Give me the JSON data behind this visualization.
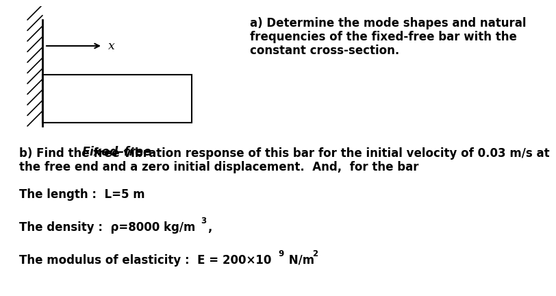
{
  "bg_color": "#ffffff",
  "text_color": "#000000",
  "title_a_line1": "a) Determine the mode shapes and natural",
  "title_a_line2": "frequencies of the fixed-free bar with the",
  "title_a_line3": "constant cross-section.",
  "text_b_line1": "b) Find the free vibration response of this bar for the initial velocity of 0.03 m/s at",
  "text_b_line2": "the free end and a zero initial displacement.  And,  for the bar",
  "length_text": "The length :  L=5 m",
  "density_main": "The density :  ρ=8000 kg/m",
  "density_super": "3",
  "density_tail": ",",
  "modulus_pre": "The modulus of elasticity :  E = 200×10",
  "modulus_super": "9",
  "modulus_post": " N/m",
  "modulus_super2": "2",
  "fixed_free": "Fixed–free",
  "font": "DejaVu Sans",
  "fs": 12.5,
  "fs_small": 9.0
}
